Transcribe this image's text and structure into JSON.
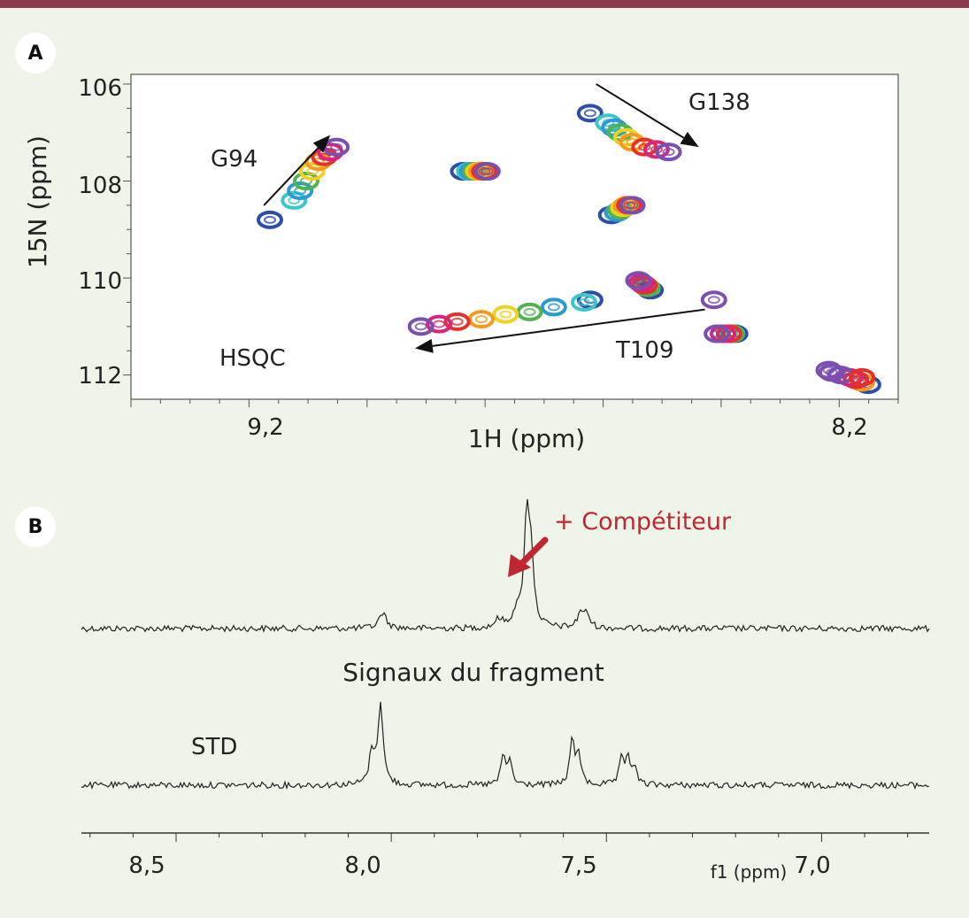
{
  "panel_a": {
    "label": "A"
  },
  "panel_b": {
    "label": "B"
  },
  "chart_data": [
    {
      "type": "scatter",
      "ylabel": "15N (ppm)",
      "xlabel": "1H (ppm)",
      "xticks": [
        "9,2",
        "8,2"
      ],
      "yticks": [
        "106",
        "108",
        "110",
        "112"
      ],
      "xlim": [
        9.42,
        8.15
      ],
      "ylim": [
        112.5,
        105.8
      ],
      "annotations": [
        "G94",
        "G138",
        "T109",
        "HSQC"
      ],
      "color_series": [
        "#2c4ea8",
        "#3cc6cc",
        "#2a9ad6",
        "#4fb34f",
        "#f0d020",
        "#f59a1e",
        "#e8302a",
        "#d8247a",
        "#7a4fb0"
      ],
      "peaks": [
        {
          "label": "G94",
          "points": [
            [
              9.19,
              108.8
            ],
            [
              9.15,
              108.4
            ],
            [
              9.14,
              108.2
            ],
            [
              9.13,
              108.0
            ],
            [
              9.12,
              107.8
            ],
            [
              9.11,
              107.6
            ],
            [
              9.1,
              107.5
            ],
            [
              9.09,
              107.4
            ],
            [
              9.08,
              107.3
            ]
          ],
          "colors": [
            0,
            1,
            2,
            3,
            4,
            5,
            6,
            7,
            8
          ]
        },
        {
          "label": "",
          "points": [
            [
              8.87,
              107.8
            ],
            [
              8.86,
              107.8
            ],
            [
              8.855,
              107.8
            ],
            [
              8.85,
              107.8
            ],
            [
              8.845,
              107.8
            ],
            [
              8.84,
              107.8
            ],
            [
              8.835,
              107.8
            ],
            [
              8.83,
              107.8
            ]
          ],
          "colors": [
            0,
            1,
            2,
            3,
            4,
            5,
            6,
            8
          ]
        },
        {
          "label": "G138",
          "points": [
            [
              8.66,
              106.6
            ],
            [
              8.63,
              106.8
            ],
            [
              8.62,
              106.9
            ],
            [
              8.61,
              107.0
            ],
            [
              8.6,
              107.1
            ],
            [
              8.59,
              107.2
            ],
            [
              8.57,
              107.3
            ],
            [
              8.55,
              107.35
            ],
            [
              8.53,
              107.4
            ]
          ],
          "colors": [
            0,
            1,
            2,
            3,
            4,
            5,
            6,
            7,
            8
          ]
        },
        {
          "label": "",
          "points": [
            [
              8.625,
              108.7
            ],
            [
              8.615,
              108.65
            ],
            [
              8.61,
              108.6
            ],
            [
              8.605,
              108.55
            ],
            [
              8.6,
              108.5
            ],
            [
              8.595,
              108.5
            ],
            [
              8.59,
              108.5
            ]
          ],
          "colors": [
            0,
            2,
            3,
            4,
            5,
            6,
            8
          ]
        },
        {
          "label": "T109",
          "points": [
            [
              8.66,
              110.45
            ],
            [
              8.67,
              110.5
            ],
            [
              8.72,
              110.6
            ],
            [
              8.76,
              110.7
            ],
            [
              8.8,
              110.75
            ],
            [
              8.84,
              110.85
            ],
            [
              8.88,
              110.9
            ],
            [
              8.91,
              110.95
            ],
            [
              8.94,
              111.0
            ]
          ],
          "colors": [
            0,
            1,
            2,
            3,
            4,
            5,
            6,
            7,
            8
          ]
        },
        {
          "label": "",
          "points": [
            [
              8.56,
              110.25
            ],
            [
              8.565,
              110.2
            ],
            [
              8.57,
              110.15
            ],
            [
              8.575,
              110.1
            ],
            [
              8.58,
              110.05
            ]
          ],
          "colors": [
            0,
            3,
            6,
            7,
            8
          ]
        },
        {
          "label": "",
          "points": [
            [
              8.455,
              110.45
            ]
          ],
          "colors": [
            8
          ]
        },
        {
          "label": "",
          "points": [
            [
              8.42,
              111.15
            ],
            [
              8.425,
              111.15
            ],
            [
              8.43,
              111.15
            ],
            [
              8.44,
              111.15
            ],
            [
              8.45,
              111.15
            ]
          ],
          "colors": [
            0,
            3,
            6,
            7,
            8
          ]
        },
        {
          "label": "",
          "points": [
            [
              8.2,
              112.2
            ],
            [
              8.21,
              112.15
            ],
            [
              8.22,
              112.1
            ],
            [
              8.23,
              112.05
            ],
            [
              8.245,
              112.0
            ],
            [
              8.26,
              111.95
            ],
            [
              8.265,
              111.9
            ],
            [
              8.21,
              112.05
            ]
          ],
          "colors": [
            0,
            5,
            6,
            7,
            8,
            8,
            8,
            6
          ]
        }
      ],
      "arrows": [
        {
          "label": "G94",
          "from": [
            9.2,
            108.5
          ],
          "to": [
            9.09,
            107.05
          ]
        },
        {
          "label": "G138",
          "from": [
            8.65,
            106.0
          ],
          "to": [
            8.48,
            107.3
          ]
        },
        {
          "label": "T109",
          "from": [
            8.47,
            110.65
          ],
          "to": [
            8.95,
            111.45
          ]
        }
      ]
    },
    {
      "type": "line",
      "xlabel": "f1 (ppm)",
      "xticks": [
        "8,5",
        "8,0",
        "7,5",
        "7,0"
      ],
      "xlim": [
        8.72,
        6.75
      ],
      "annotation": "+ Compétiteur",
      "annotation_color": "#c0262f",
      "series": [
        {
          "name": "",
          "peaks": [
            [
              8.02,
              0.15,
              0.01
            ],
            [
              7.685,
              1.0,
              0.008
            ],
            [
              7.675,
              0.55,
              0.007
            ],
            [
              7.71,
              0.12,
              0.01
            ],
            [
              7.56,
              0.15,
              0.008
            ],
            [
              7.545,
              0.12,
              0.008
            ],
            [
              7.75,
              0.08,
              0.01
            ]
          ]
        },
        {
          "name": "STD",
          "peaks": [
            [
              8.025,
              1.0,
              0.007
            ],
            [
              8.045,
              0.4,
              0.007
            ],
            [
              7.74,
              0.35,
              0.006
            ],
            [
              7.725,
              0.3,
              0.006
            ],
            [
              7.58,
              0.55,
              0.006
            ],
            [
              7.565,
              0.4,
              0.006
            ],
            [
              7.465,
              0.3,
              0.006
            ],
            [
              7.45,
              0.35,
              0.006
            ],
            [
              7.435,
              0.2,
              0.006
            ]
          ]
        }
      ],
      "labels": [
        "Signaux du fragment",
        "STD"
      ]
    }
  ]
}
